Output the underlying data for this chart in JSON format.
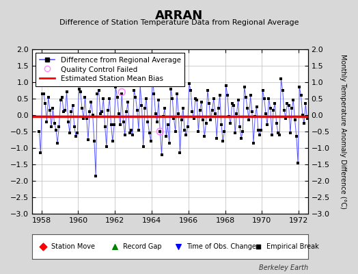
{
  "title": "ARRAN",
  "subtitle": "Difference of Station Temperature Data from Regional Average",
  "ylabel_right": "Monthly Temperature Anomaly Difference (°C)",
  "xlim": [
    1957.5,
    1972.5
  ],
  "ylim": [
    -3,
    2
  ],
  "yticks": [
    -3,
    -2.5,
    -2,
    -1.5,
    -1,
    -0.5,
    0,
    0.5,
    1,
    1.5,
    2
  ],
  "xticks": [
    1958,
    1960,
    1962,
    1964,
    1966,
    1968,
    1970,
    1972
  ],
  "bias_level": -0.05,
  "line_color": "#5555FF",
  "dot_color": "#000000",
  "bias_color": "#FF0000",
  "qc_fail_color": "#FF88FF",
  "background_color": "#d8d8d8",
  "plot_bg_color": "#ffffff",
  "grid_color": "#aaaaaa",
  "watermark": "Berkeley Earth",
  "qc_points": [
    [
      1962.375,
      0.7
    ],
    [
      1964.458,
      -0.5
    ]
  ],
  "data_x": [
    1957.875,
    1957.958,
    1958.042,
    1958.125,
    1958.208,
    1958.292,
    1958.375,
    1958.458,
    1958.542,
    1958.625,
    1958.708,
    1958.792,
    1958.875,
    1958.958,
    1959.042,
    1959.125,
    1959.208,
    1959.292,
    1959.375,
    1959.458,
    1959.542,
    1959.625,
    1959.708,
    1959.792,
    1959.875,
    1959.958,
    1960.042,
    1960.125,
    1960.208,
    1960.292,
    1960.375,
    1960.458,
    1960.542,
    1960.625,
    1960.708,
    1960.792,
    1960.875,
    1960.958,
    1961.042,
    1961.125,
    1961.208,
    1961.292,
    1961.375,
    1961.458,
    1961.542,
    1961.625,
    1961.708,
    1961.792,
    1961.875,
    1961.958,
    1962.042,
    1962.125,
    1962.208,
    1962.292,
    1962.375,
    1962.458,
    1962.542,
    1962.625,
    1962.708,
    1962.792,
    1962.875,
    1962.958,
    1963.042,
    1963.125,
    1963.208,
    1963.292,
    1963.375,
    1963.458,
    1963.542,
    1963.625,
    1963.708,
    1963.792,
    1963.875,
    1963.958,
    1964.042,
    1964.125,
    1964.208,
    1964.292,
    1964.375,
    1964.458,
    1964.542,
    1964.625,
    1964.708,
    1964.792,
    1964.875,
    1964.958,
    1965.042,
    1965.125,
    1965.208,
    1965.292,
    1965.375,
    1965.458,
    1965.542,
    1965.625,
    1965.708,
    1965.792,
    1965.875,
    1965.958,
    1966.042,
    1966.125,
    1966.208,
    1966.292,
    1966.375,
    1966.458,
    1966.542,
    1966.625,
    1966.708,
    1966.792,
    1966.875,
    1966.958,
    1967.042,
    1967.125,
    1967.208,
    1967.292,
    1967.375,
    1967.458,
    1967.542,
    1967.625,
    1967.708,
    1967.792,
    1967.875,
    1967.958,
    1968.042,
    1968.125,
    1968.208,
    1968.292,
    1968.375,
    1968.458,
    1968.542,
    1968.625,
    1968.708,
    1968.792,
    1968.875,
    1968.958,
    1969.042,
    1969.125,
    1969.208,
    1969.292,
    1969.375,
    1969.458,
    1969.542,
    1969.625,
    1969.708,
    1969.792,
    1969.875,
    1969.958,
    1970.042,
    1970.125,
    1970.208,
    1970.292,
    1970.375,
    1970.458,
    1970.542,
    1970.625,
    1970.708,
    1970.792,
    1970.875,
    1970.958,
    1971.042,
    1971.125,
    1971.208,
    1971.292,
    1971.375,
    1971.458,
    1971.542,
    1971.625,
    1971.708,
    1971.792,
    1971.875,
    1971.958,
    1972.042,
    1972.125,
    1972.208,
    1972.292,
    1972.375,
    1972.458
  ],
  "data_y": [
    -0.5,
    -1.15,
    0.65,
    0.65,
    0.35,
    -0.2,
    0.55,
    0.15,
    -0.35,
    0.2,
    -0.25,
    -0.45,
    -0.85,
    -0.35,
    0.45,
    0.55,
    0.1,
    0.15,
    0.7,
    -0.2,
    -0.55,
    0.1,
    0.3,
    -0.35,
    -0.65,
    -0.55,
    0.8,
    0.7,
    0.2,
    -0.1,
    0.55,
    -0.1,
    -0.75,
    0.1,
    0.4,
    0.0,
    -0.8,
    -1.85,
    0.65,
    0.75,
    0.05,
    0.1,
    0.5,
    -0.35,
    -0.95,
    0.15,
    0.5,
    -0.3,
    -0.8,
    -0.3,
    0.85,
    0.55,
    0.05,
    -0.3,
    0.65,
    -0.2,
    -0.6,
    0.1,
    0.4,
    -0.55,
    -0.45,
    -0.6,
    0.75,
    0.55,
    0.15,
    -0.45,
    0.9,
    0.3,
    -0.95,
    0.2,
    0.5,
    -0.2,
    -0.55,
    -0.8,
    1.15,
    0.65,
    0.05,
    -0.2,
    0.45,
    -0.5,
    -1.2,
    -0.05,
    0.2,
    -0.65,
    -0.3,
    -0.85,
    0.8,
    0.5,
    -0.1,
    -0.5,
    0.65,
    0.05,
    -1.15,
    -0.15,
    0.2,
    -0.45,
    -0.6,
    -0.35,
    0.95,
    0.75,
    0.1,
    -0.1,
    0.5,
    0.45,
    -0.5,
    0.15,
    0.4,
    -0.15,
    -0.65,
    -0.25,
    0.75,
    0.35,
    -0.15,
    0.15,
    0.5,
    0.05,
    -0.7,
    0.2,
    0.6,
    -0.3,
    -0.8,
    -0.5,
    0.9,
    0.6,
    -0.05,
    -0.25,
    0.35,
    0.3,
    -0.55,
    0.05,
    0.45,
    -0.35,
    -0.7,
    -0.5,
    0.85,
    0.55,
    0.2,
    -0.15,
    0.6,
    0.1,
    -0.85,
    -0.05,
    0.25,
    -0.45,
    -0.6,
    -0.45,
    0.75,
    0.5,
    0.05,
    -0.3,
    0.5,
    0.2,
    -0.6,
    0.15,
    0.35,
    -0.25,
    -0.55,
    -0.6,
    1.1,
    0.75,
    0.15,
    -0.1,
    0.35,
    0.3,
    -0.55,
    0.2,
    0.45,
    -0.15,
    -0.65,
    -1.45,
    0.85,
    0.6,
    0.0,
    -0.25,
    0.35,
    -0.1
  ]
}
